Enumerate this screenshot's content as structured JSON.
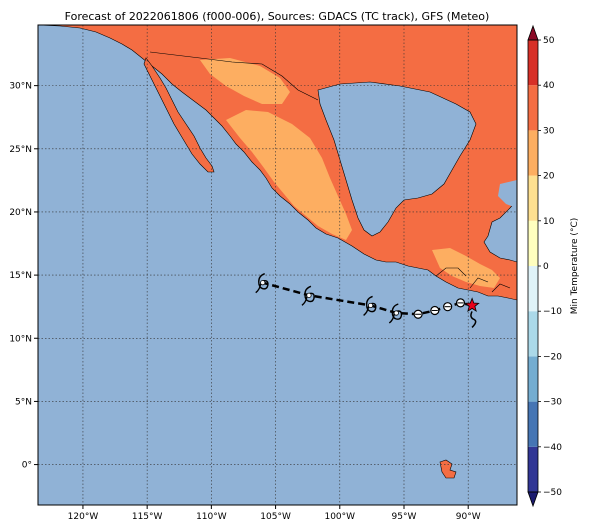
{
  "title": "Forecast of 2022061806 (f000-006), Sources: GDACS (TC track), GFS (Meteo)",
  "map": {
    "lon_range": [
      -123.5,
      -86.2
    ],
    "lat_range": [
      -3.2,
      34.8
    ],
    "lon_ticks": [
      {
        "value": -120,
        "label": "120°W"
      },
      {
        "value": -115,
        "label": "115°W"
      },
      {
        "value": -110,
        "label": "110°W"
      },
      {
        "value": -105,
        "label": "105°W"
      },
      {
        "value": -100,
        "label": "100°W"
      },
      {
        "value": -95,
        "label": "95°W"
      },
      {
        "value": -90,
        "label": "90°W"
      }
    ],
    "lat_ticks": [
      {
        "value": 30,
        "label": "30°N"
      },
      {
        "value": 25,
        "label": "25°N"
      },
      {
        "value": 20,
        "label": "20°N"
      },
      {
        "value": 15,
        "label": "15°N"
      },
      {
        "value": 10,
        "label": "10°N"
      },
      {
        "value": 5,
        "label": "5°N"
      },
      {
        "value": 0,
        "label": "0°"
      }
    ],
    "gridlines": true,
    "ocean_color": "#90b2d6",
    "land_warm_color": "#f46d43",
    "land_mild_color": "#fdae61",
    "land_cool_color": "#fee090"
  },
  "colorbar": {
    "label": "Min Temperature (°C)",
    "range": [
      -50,
      50
    ],
    "ticks": [
      {
        "value": 50,
        "label": "50"
      },
      {
        "value": 40,
        "label": "40"
      },
      {
        "value": 30,
        "label": "30"
      },
      {
        "value": 20,
        "label": "20"
      },
      {
        "value": 10,
        "label": "10"
      },
      {
        "value": 0,
        "label": "0"
      },
      {
        "value": -10,
        "label": "−10"
      },
      {
        "value": -20,
        "label": "−20"
      },
      {
        "value": -30,
        "label": "−30"
      },
      {
        "value": -40,
        "label": "−40"
      },
      {
        "value": -50,
        "label": "−50"
      }
    ],
    "bins": [
      {
        "from": -50,
        "to": -40,
        "color": "#313695"
      },
      {
        "from": -40,
        "to": -30,
        "color": "#4575b4"
      },
      {
        "from": -30,
        "to": -20,
        "color": "#74add1"
      },
      {
        "from": -20,
        "to": -10,
        "color": "#abd9e9"
      },
      {
        "from": -10,
        "to": 0,
        "color": "#e0f3f8"
      },
      {
        "from": 0,
        "to": 10,
        "color": "#ffffbf"
      },
      {
        "from": 10,
        "to": 20,
        "color": "#fee090"
      },
      {
        "from": 20,
        "to": 30,
        "color": "#fdae61"
      },
      {
        "from": 30,
        "to": 40,
        "color": "#f46d43"
      },
      {
        "from": 40,
        "to": 50,
        "color": "#d73027"
      }
    ],
    "extend_min_color": "#1a1a6e",
    "extend_max_color": "#8b0a26"
  },
  "track": {
    "points": [
      {
        "lon": -89.7,
        "lat": 12.6,
        "kind": "current"
      },
      {
        "lon": -90.6,
        "lat": 12.8,
        "kind": "depression"
      },
      {
        "lon": -91.6,
        "lat": 12.5,
        "kind": "depression"
      },
      {
        "lon": -92.6,
        "lat": 12.2,
        "kind": "depression"
      },
      {
        "lon": -93.9,
        "lat": 11.9,
        "kind": "depression"
      },
      {
        "lon": -95.6,
        "lat": 12.0,
        "kind": "hurricane"
      },
      {
        "lon": -97.6,
        "lat": 12.6,
        "kind": "hurricane"
      },
      {
        "lon": -102.4,
        "lat": 13.4,
        "kind": "hurricane"
      },
      {
        "lon": -106.0,
        "lat": 14.4,
        "kind": "hurricane"
      }
    ],
    "current_color": "#e8001a"
  }
}
